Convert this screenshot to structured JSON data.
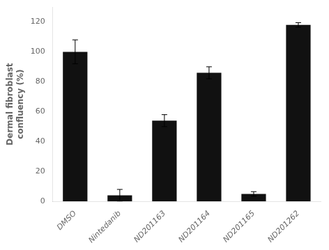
{
  "chart_data": {
    "type": "bar",
    "categories": [
      "DMSO",
      "Nintedanib",
      "ND201163",
      "ND201164",
      "ND201165",
      "ND201262"
    ],
    "values": [
      100,
      4,
      54,
      86,
      5,
      118
    ],
    "errors": [
      8,
      4,
      4,
      4,
      1.5,
      1.5
    ],
    "color": "#111111",
    "ylabel": "Dermal fibroblast\nconfluency (%)",
    "ylim": [
      0,
      130
    ],
    "yticks": [
      0,
      20,
      40,
      60,
      80,
      100,
      120
    ],
    "grid": false
  }
}
